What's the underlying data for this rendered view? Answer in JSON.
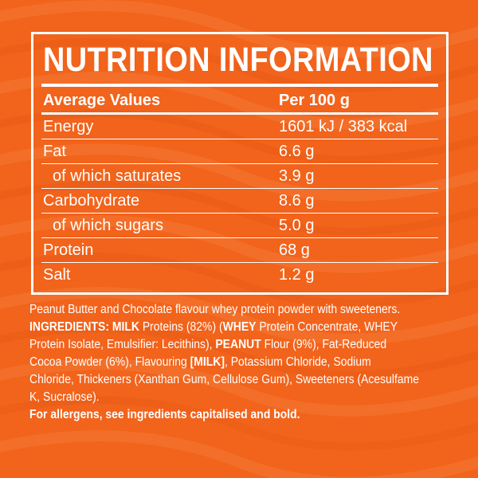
{
  "colors": {
    "background": "#f2631b",
    "wave": "#f47a35",
    "text": "#ffffff"
  },
  "panel": {
    "title": "NUTRITION INFORMATION",
    "header": {
      "label": "Average Values",
      "value": "Per 100 g"
    },
    "rows": [
      {
        "label": "Energy",
        "value": "1601 kJ / 383 kcal"
      },
      {
        "label": "Fat",
        "value": "6.6 g"
      },
      {
        "label": "of which saturates",
        "value": "3.9 g"
      },
      {
        "label": "Carbohydrate",
        "value": "8.6 g"
      },
      {
        "label": "of which sugars",
        "value": "5.0 g"
      },
      {
        "label": "Protein",
        "value": "68 g"
      },
      {
        "label": "Salt",
        "value": "1.2 g"
      }
    ]
  },
  "description": {
    "line1": "Peanut Butter and Chocolate flavour whey protein powder with sweeteners.",
    "ingredients_label": "INGREDIENTS:",
    "milk": "MILK",
    "proteins_text": " Proteins (82%) (",
    "whey": "WHEY",
    "whey_text": " Protein Concentrate, WHEY",
    "line3_a": "Protein Isolate, Emulsifier: Lecithins), ",
    "peanut": "PEANUT",
    "line3_b": " Flour (9%), Fat-Reduced",
    "line4_a": "Cocoa Powder (6%), Flavouring ",
    "milk_bracket": "[MILK]",
    "line4_b": ", Potassium Chloride, Sodium",
    "line5": "Chloride, Thickeners (Xanthan Gum, Cellulose Gum), Sweeteners (Acesulfame",
    "line6": "K, Sucralose).",
    "allergens": "For allergens, see ingredients capitalised and bold."
  }
}
